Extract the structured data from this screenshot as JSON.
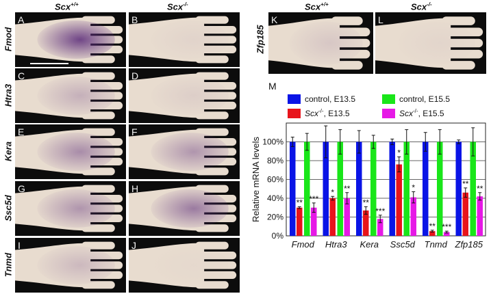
{
  "column_headers": {
    "left": {
      "gene": "Scx",
      "sup": "+/+"
    },
    "right": {
      "gene": "Scx",
      "sup": "-/-"
    },
    "zfp_left": {
      "gene": "Scx",
      "sup": "+/+"
    },
    "zfp_right": {
      "gene": "Scx",
      "sup": "-/-"
    }
  },
  "rows": [
    {
      "label": "Fmod",
      "left_letter": "A",
      "right_letter": "B",
      "left_staining": 0.85,
      "right_staining": 0.05
    },
    {
      "label": "Htra3",
      "left_letter": "C",
      "right_letter": "D",
      "left_staining": 0.25,
      "right_staining": 0.08
    },
    {
      "label": "Kera",
      "left_letter": "E",
      "right_letter": "F",
      "left_staining": 0.45,
      "right_staining": 0.4
    },
    {
      "label": "Ssc5d",
      "left_letter": "G",
      "right_letter": "H",
      "left_staining": 0.4,
      "right_staining": 0.55
    },
    {
      "label": "Tnmd",
      "left_letter": "I",
      "right_letter": "J",
      "left_staining": 0.2,
      "right_staining": 0.02
    }
  ],
  "zfp_row": {
    "label": "Zfp185",
    "left_letter": "K",
    "right_letter": "L",
    "left_staining": 0.12,
    "right_staining": 0.04
  },
  "panel_m_letter": "M",
  "colors": {
    "control_e135": "#0a14e6",
    "scx_e135": "#e8141b",
    "control_e155": "#19e619",
    "scx_e155": "#e619e6",
    "tissue": "#e8dccf",
    "stain": "#5a2a7a",
    "background": "#0c0c0c"
  },
  "chart_data": {
    "type": "bar",
    "ylabel": "Relative mRNA levels",
    "ylim": [
      0,
      120
    ],
    "yticks": [
      "0%",
      "20%",
      "40%",
      "60%",
      "80%",
      "100%"
    ],
    "ytick_values": [
      0,
      20,
      40,
      60,
      80,
      100
    ],
    "grid": true,
    "legend_position": "top",
    "categories": [
      "Fmod",
      "Htra3",
      "Kera",
      "Ssc5d",
      "Tnmd",
      "Zfp185"
    ],
    "series": [
      {
        "name": "control, E13.5",
        "name_prefix": "",
        "name_suffix": "control, E13.5",
        "color_key": "control_e135",
        "values": [
          100,
          100,
          100,
          100,
          100,
          100
        ],
        "errors": [
          5,
          17,
          12,
          3,
          10,
          2
        ]
      },
      {
        "name": "Scx-/-, E13.5",
        "name_prefix": "Scx",
        "name_sup": "-/-",
        "name_suffix": ", E13.5",
        "color_key": "scx_e135",
        "values": [
          30,
          40,
          27,
          76,
          5,
          46
        ],
        "errors": [
          1,
          2,
          4,
          8,
          1,
          5
        ]
      },
      {
        "name": "control, E15.5",
        "name_prefix": "",
        "name_suffix": "control, E15.5",
        "color_key": "control_e155",
        "values": [
          100,
          100,
          100,
          100,
          100,
          100
        ],
        "errors": [
          9,
          13,
          7,
          13,
          13,
          15
        ]
      },
      {
        "name": "Scx-/-, E15.5",
        "name_prefix": "Scx",
        "name_sup": "-/-",
        "name_suffix": ", E15.5",
        "color_key": "scx_e155",
        "values": [
          30,
          40,
          18,
          41,
          4,
          42
        ],
        "errors": [
          5,
          6,
          4,
          6,
          1,
          4
        ]
      }
    ],
    "annotations": [
      {
        "category": 0,
        "series": 1,
        "text": "**"
      },
      {
        "category": 0,
        "series": 3,
        "text": "***"
      },
      {
        "category": 1,
        "series": 1,
        "text": "*"
      },
      {
        "category": 1,
        "series": 3,
        "text": "**"
      },
      {
        "category": 2,
        "series": 1,
        "text": "**"
      },
      {
        "category": 2,
        "series": 3,
        "text": "***"
      },
      {
        "category": 3,
        "series": 1,
        "text": "*"
      },
      {
        "category": 3,
        "series": 3,
        "text": "*"
      },
      {
        "category": 4,
        "series": 1,
        "text": "**"
      },
      {
        "category": 4,
        "series": 3,
        "text": "***"
      },
      {
        "category": 5,
        "series": 1,
        "text": "**"
      },
      {
        "category": 5,
        "series": 3,
        "text": "**"
      }
    ]
  }
}
